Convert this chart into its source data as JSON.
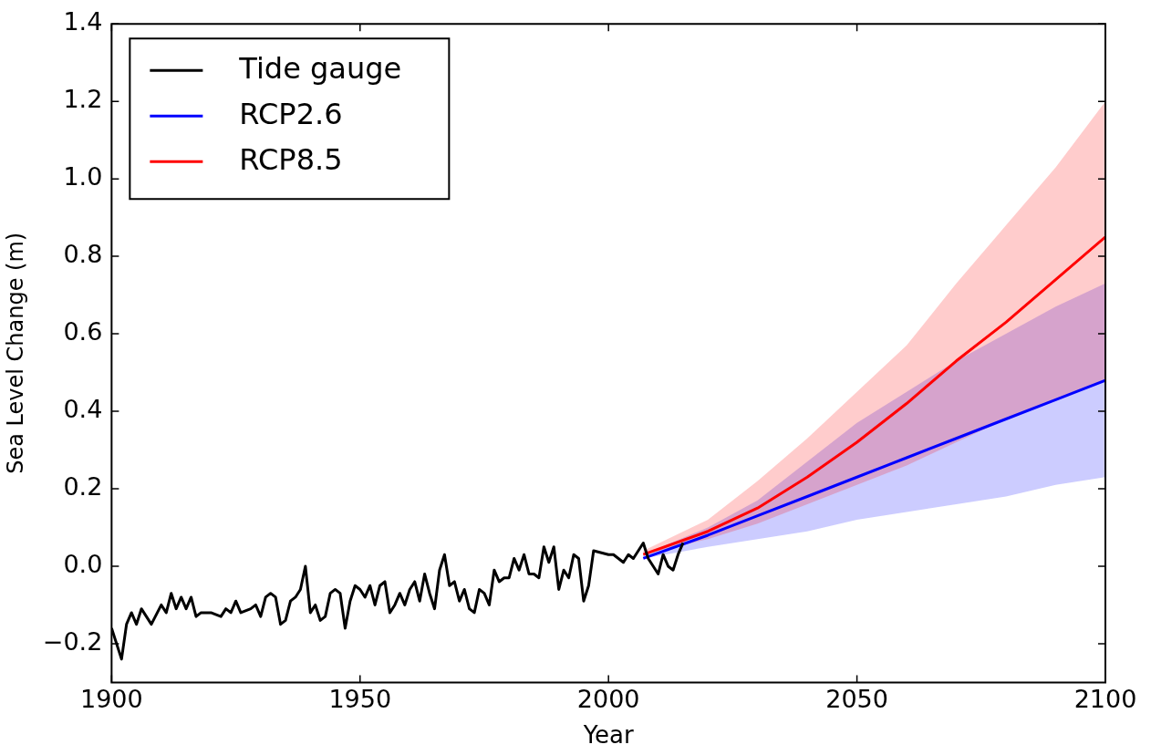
{
  "chart_data": {
    "type": "line",
    "xlabel": "Year",
    "ylabel": "Sea Level Change (m)",
    "xlim": [
      1900,
      2100
    ],
    "ylim": [
      -0.3,
      1.4
    ],
    "xticks": [
      1900,
      1950,
      2000,
      2050,
      2100
    ],
    "yticks": [
      {
        "value": -0.2,
        "label": "−0.2"
      },
      {
        "value": 0,
        "label": "0.0"
      },
      {
        "value": 0.2,
        "label": "0.2"
      },
      {
        "value": 0.4,
        "label": "0.4"
      },
      {
        "value": 0.6,
        "label": "0.6"
      },
      {
        "value": 0.8,
        "label": "0.8"
      },
      {
        "value": 1.0,
        "label": "1.0"
      },
      {
        "value": 1.2,
        "label": "1.2"
      },
      {
        "value": 1.4,
        "label": "1.4"
      }
    ],
    "grid": false,
    "legend": "top left",
    "marker": "none",
    "line_style": "solid",
    "series": [
      {
        "name": "Tide gauge",
        "color": "#000000",
        "x": [
          1900,
          1902,
          1903,
          1904,
          1905,
          1906,
          1908,
          1910,
          1911,
          1912,
          1913,
          1914,
          1915,
          1916,
          1917,
          1918,
          1920,
          1922,
          1923,
          1924,
          1925,
          1926,
          1928,
          1929,
          1930,
          1931,
          1932,
          1933,
          1934,
          1935,
          1936,
          1937,
          1938,
          1939,
          1940,
          1941,
          1942,
          1943,
          1944,
          1945,
          1946,
          1947,
          1948,
          1949,
          1950,
          1951,
          1952,
          1953,
          1954,
          1955,
          1956,
          1957,
          1958,
          1959,
          1960,
          1961,
          1962,
          1963,
          1964,
          1965,
          1966,
          1967,
          1968,
          1969,
          1970,
          1971,
          1972,
          1973,
          1974,
          1975,
          1976,
          1977,
          1978,
          1979,
          1980,
          1981,
          1982,
          1983,
          1984,
          1985,
          1986,
          1987,
          1988,
          1989,
          1990,
          1991,
          1992,
          1993,
          1994,
          1995,
          1996,
          1997,
          2000,
          2001,
          2002,
          2003,
          2004,
          2005,
          2006,
          2007,
          2008,
          2009,
          2010,
          2011,
          2012,
          2013,
          2014,
          2015
        ],
        "values": [
          -0.16,
          -0.24,
          -0.15,
          -0.12,
          -0.15,
          -0.11,
          -0.15,
          -0.1,
          -0.12,
          -0.07,
          -0.11,
          -0.08,
          -0.11,
          -0.08,
          -0.13,
          -0.12,
          -0.12,
          -0.13,
          -0.11,
          -0.12,
          -0.09,
          -0.12,
          -0.11,
          -0.1,
          -0.13,
          -0.08,
          -0.07,
          -0.08,
          -0.15,
          -0.14,
          -0.09,
          -0.08,
          -0.06,
          0.0,
          -0.12,
          -0.1,
          -0.14,
          -0.13,
          -0.07,
          -0.06,
          -0.07,
          -0.16,
          -0.09,
          -0.05,
          -0.06,
          -0.08,
          -0.05,
          -0.1,
          -0.05,
          -0.04,
          -0.12,
          -0.1,
          -0.07,
          -0.1,
          -0.06,
          -0.04,
          -0.09,
          -0.02,
          -0.07,
          -0.11,
          -0.01,
          0.03,
          -0.05,
          -0.04,
          -0.09,
          -0.06,
          -0.11,
          -0.12,
          -0.06,
          -0.07,
          -0.1,
          -0.01,
          -0.04,
          -0.03,
          -0.03,
          0.02,
          -0.01,
          0.03,
          -0.02,
          -0.02,
          -0.03,
          0.05,
          0.01,
          0.05,
          -0.06,
          -0.01,
          -0.03,
          0.03,
          0.02,
          -0.09,
          -0.05,
          0.04,
          0.03,
          0.03,
          0.02,
          0.01,
          0.03,
          0.02,
          0.04,
          0.06,
          0.02,
          0.0,
          -0.02,
          0.03,
          0.0,
          -0.01,
          0.03,
          0.06
        ]
      },
      {
        "name": "RCP2.6",
        "color": "#0000ff",
        "x": [
          2007,
          2020,
          2030,
          2040,
          2050,
          2060,
          2070,
          2080,
          2090,
          2100
        ],
        "values": [
          0.02,
          0.08,
          0.13,
          0.18,
          0.23,
          0.28,
          0.33,
          0.38,
          0.43,
          0.48
        ],
        "lower": [
          0.02,
          0.05,
          0.07,
          0.09,
          0.12,
          0.14,
          0.16,
          0.18,
          0.21,
          0.23
        ],
        "upper": [
          0.03,
          0.1,
          0.17,
          0.27,
          0.37,
          0.45,
          0.53,
          0.6,
          0.67,
          0.73
        ]
      },
      {
        "name": "RCP8.5",
        "color": "#ff0000",
        "x": [
          2007,
          2020,
          2030,
          2040,
          2050,
          2060,
          2070,
          2080,
          2090,
          2100
        ],
        "values": [
          0.03,
          0.09,
          0.15,
          0.23,
          0.32,
          0.42,
          0.53,
          0.63,
          0.74,
          0.85
        ],
        "lower": [
          0.03,
          0.07,
          0.11,
          0.16,
          0.21,
          0.26,
          0.32,
          0.38,
          0.43,
          0.48
        ],
        "upper": [
          0.04,
          0.12,
          0.22,
          0.33,
          0.45,
          0.57,
          0.73,
          0.88,
          1.03,
          1.2
        ]
      }
    ]
  }
}
